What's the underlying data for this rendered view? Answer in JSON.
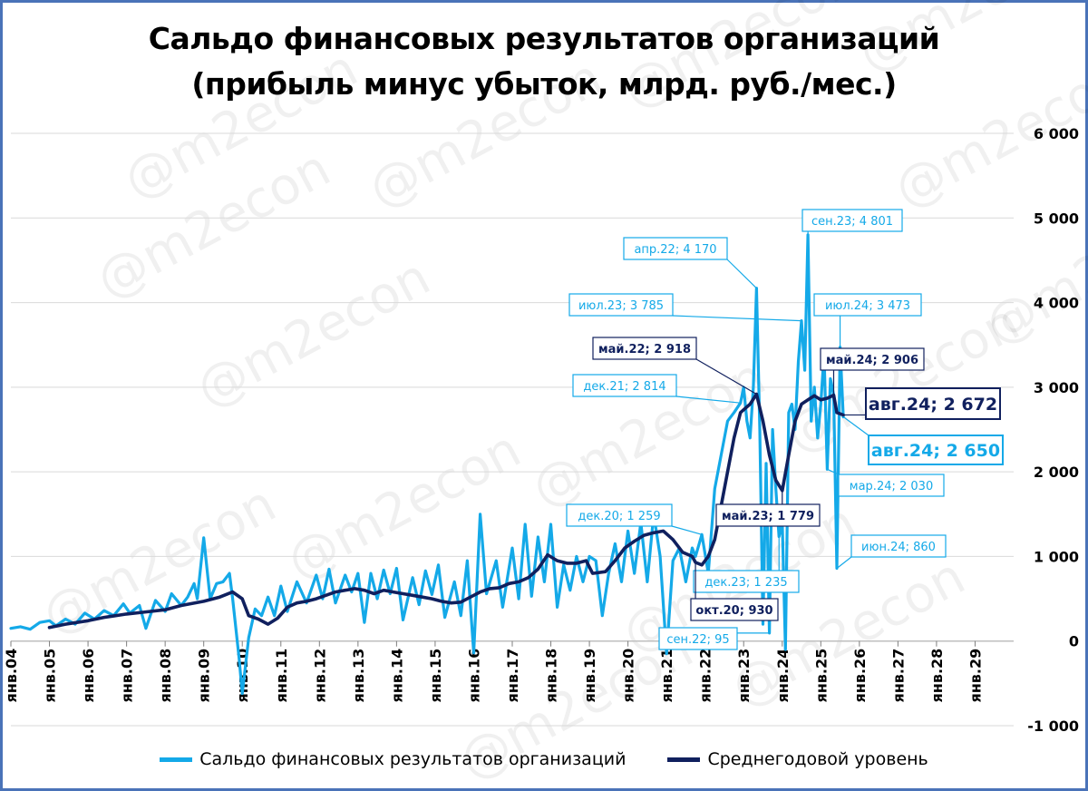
{
  "title": {
    "line1": "Сальдо финансовых результатов организаций",
    "line2": "(прибыль минус убыток, млрд. руб./мес.)"
  },
  "watermark": "@m2econ",
  "colors": {
    "series_main": "#14a9e8",
    "series_avg": "#10205e",
    "grid": "#d9d9d9",
    "frame": "#4a73b8"
  },
  "chart_data": {
    "type": "line",
    "y_axis": {
      "min": -1000,
      "max": 6000,
      "step": 1000,
      "position": "right"
    },
    "yticks": [
      "-1 000",
      "0",
      "1 000",
      "2 000",
      "3 000",
      "4 000",
      "5 000",
      "6 000"
    ],
    "x_axis": {
      "start_year": 2004,
      "end_year": 2030,
      "label_rotation": "vertical"
    },
    "xticks": [
      "янв.04",
      "янв.05",
      "янв.06",
      "янв.07",
      "янв.08",
      "янв.09",
      "янв.10",
      "янв.11",
      "янв.12",
      "янв.13",
      "янв.14",
      "янв.15",
      "янв.16",
      "янв.17",
      "янв.18",
      "янв.19",
      "янв.20",
      "янв.21",
      "янв.22",
      "янв.23",
      "янв.24",
      "янв.25",
      "янв.26",
      "янв.27",
      "янв.28",
      "янв.29"
    ],
    "grid": true,
    "legend_position": "bottom",
    "series": [
      {
        "name": "Сальдо финансовых результатов организаций",
        "color": "#14a9e8",
        "points": [
          [
            "2004-01",
            150
          ],
          [
            "2004-04",
            170
          ],
          [
            "2004-07",
            140
          ],
          [
            "2004-10",
            220
          ],
          [
            "2005-01",
            240
          ],
          [
            "2005-03",
            180
          ],
          [
            "2005-06",
            260
          ],
          [
            "2005-09",
            200
          ],
          [
            "2005-12",
            330
          ],
          [
            "2006-03",
            260
          ],
          [
            "2006-06",
            360
          ],
          [
            "2006-09",
            300
          ],
          [
            "2006-12",
            440
          ],
          [
            "2007-02",
            330
          ],
          [
            "2007-05",
            420
          ],
          [
            "2007-07",
            150
          ],
          [
            "2007-10",
            480
          ],
          [
            "2008-01",
            350
          ],
          [
            "2008-03",
            560
          ],
          [
            "2008-06",
            420
          ],
          [
            "2008-08",
            520
          ],
          [
            "2008-10",
            680
          ],
          [
            "2008-11",
            500
          ],
          [
            "2009-01",
            1220
          ],
          [
            "2009-03",
            500
          ],
          [
            "2009-05",
            680
          ],
          [
            "2009-07",
            700
          ],
          [
            "2009-09",
            800
          ],
          [
            "2009-10",
            500
          ],
          [
            "2009-12",
            -200
          ],
          [
            "2010-01",
            -620
          ],
          [
            "2010-03",
            40
          ],
          [
            "2010-05",
            380
          ],
          [
            "2010-07",
            300
          ],
          [
            "2010-09",
            520
          ],
          [
            "2010-11",
            300
          ],
          [
            "2011-01",
            650
          ],
          [
            "2011-03",
            350
          ],
          [
            "2011-06",
            700
          ],
          [
            "2011-09",
            450
          ],
          [
            "2011-12",
            780
          ],
          [
            "2012-02",
            500
          ],
          [
            "2012-04",
            850
          ],
          [
            "2012-06",
            450
          ],
          [
            "2012-09",
            780
          ],
          [
            "2012-11",
            580
          ],
          [
            "2013-01",
            800
          ],
          [
            "2013-03",
            220
          ],
          [
            "2013-05",
            800
          ],
          [
            "2013-07",
            500
          ],
          [
            "2013-09",
            840
          ],
          [
            "2013-11",
            560
          ],
          [
            "2014-01",
            860
          ],
          [
            "2014-03",
            250
          ],
          [
            "2014-06",
            750
          ],
          [
            "2014-08",
            430
          ],
          [
            "2014-10",
            830
          ],
          [
            "2014-12",
            550
          ],
          [
            "2015-02",
            900
          ],
          [
            "2015-04",
            280
          ],
          [
            "2015-07",
            700
          ],
          [
            "2015-09",
            300
          ],
          [
            "2015-11",
            950
          ],
          [
            "2016-01",
            -140
          ],
          [
            "2016-03",
            1500
          ],
          [
            "2016-05",
            560
          ],
          [
            "2016-08",
            950
          ],
          [
            "2016-10",
            400
          ],
          [
            "2017-01",
            1100
          ],
          [
            "2017-03",
            500
          ],
          [
            "2017-05",
            1380
          ],
          [
            "2017-07",
            530
          ],
          [
            "2017-09",
            1230
          ],
          [
            "2017-11",
            700
          ],
          [
            "2018-01",
            1380
          ],
          [
            "2018-03",
            400
          ],
          [
            "2018-05",
            900
          ],
          [
            "2018-07",
            600
          ],
          [
            "2018-09",
            1000
          ],
          [
            "2018-11",
            700
          ],
          [
            "2019-01",
            1000
          ],
          [
            "2019-03",
            950
          ],
          [
            "2019-05",
            300
          ],
          [
            "2019-07",
            800
          ],
          [
            "2019-09",
            1150
          ],
          [
            "2019-11",
            700
          ],
          [
            "2020-01",
            1300
          ],
          [
            "2020-03",
            800
          ],
          [
            "2020-05",
            1400
          ],
          [
            "2020-07",
            700
          ],
          [
            "2020-09",
            1500
          ],
          [
            "2020-11",
            1000
          ],
          [
            "2021-01",
            -150
          ],
          [
            "2021-03",
            950
          ],
          [
            "2021-05",
            1100
          ],
          [
            "2021-07",
            700
          ],
          [
            "2021-09",
            1100
          ],
          [
            "2021-10",
            1000
          ],
          [
            "2021-12",
            1259
          ],
          [
            "2022-02",
            800
          ],
          [
            "2022-04",
            1800
          ],
          [
            "2022-06",
            2200
          ],
          [
            "2022-08",
            2600
          ],
          [
            "2022-10",
            2700
          ],
          [
            "2022-12",
            2814
          ],
          [
            "2023-01",
            3000
          ],
          [
            "2023-02",
            2600
          ],
          [
            "2023-03",
            2400
          ],
          [
            "2023-04",
            3000
          ],
          [
            "2023-05",
            4170
          ],
          [
            "2023-06",
            2500
          ],
          [
            "2023-07",
            200
          ],
          [
            "2023-08",
            2100
          ],
          [
            "2023-09",
            95
          ],
          [
            "2023-10",
            2500
          ],
          [
            "2023-11",
            1800
          ],
          [
            "2023-12",
            1235
          ],
          [
            "2024-01",
            1400
          ],
          [
            "2024-02",
            -100
          ],
          [
            "2024-03",
            2700
          ],
          [
            "2024-04",
            2800
          ],
          [
            "2024-05",
            2500
          ],
          [
            "2024-06",
            3300
          ],
          [
            "2024-07",
            3785
          ],
          [
            "2024-08",
            3200
          ],
          [
            "2024-09",
            4801
          ],
          [
            "2024-10",
            2600
          ],
          [
            "2024-11",
            3000
          ],
          [
            "2024-12",
            2400
          ],
          [
            "2025-01",
            2800
          ],
          [
            "2025-02",
            3400
          ],
          [
            "2025-03",
            2030
          ],
          [
            "2025-04",
            3100
          ],
          [
            "2025-05",
            2906
          ],
          [
            "2025-06",
            860
          ],
          [
            "2025-07",
            3473
          ],
          [
            "2025-08",
            2650
          ]
        ]
      },
      {
        "name": "Среднегодовой уровень",
        "color": "#10205e",
        "points": [
          [
            "2005-01",
            160
          ],
          [
            "2005-06",
            200
          ],
          [
            "2006-01",
            240
          ],
          [
            "2006-06",
            280
          ],
          [
            "2007-01",
            320
          ],
          [
            "2007-06",
            340
          ],
          [
            "2008-01",
            370
          ],
          [
            "2008-06",
            420
          ],
          [
            "2009-01",
            470
          ],
          [
            "2009-06",
            520
          ],
          [
            "2009-10",
            580
          ],
          [
            "2010-01",
            500
          ],
          [
            "2010-03",
            300
          ],
          [
            "2010-06",
            260
          ],
          [
            "2010-09",
            200
          ],
          [
            "2010-12",
            270
          ],
          [
            "2011-03",
            400
          ],
          [
            "2011-06",
            450
          ],
          [
            "2011-09",
            470
          ],
          [
            "2011-12",
            500
          ],
          [
            "2012-03",
            540
          ],
          [
            "2012-06",
            580
          ],
          [
            "2012-09",
            600
          ],
          [
            "2012-12",
            620
          ],
          [
            "2013-03",
            600
          ],
          [
            "2013-06",
            560
          ],
          [
            "2013-09",
            600
          ],
          [
            "2013-12",
            580
          ],
          [
            "2014-03",
            560
          ],
          [
            "2014-06",
            540
          ],
          [
            "2014-09",
            520
          ],
          [
            "2014-12",
            500
          ],
          [
            "2015-03",
            470
          ],
          [
            "2015-06",
            450
          ],
          [
            "2015-09",
            460
          ],
          [
            "2015-12",
            520
          ],
          [
            "2016-03",
            580
          ],
          [
            "2016-06",
            620
          ],
          [
            "2016-09",
            630
          ],
          [
            "2016-12",
            680
          ],
          [
            "2017-03",
            700
          ],
          [
            "2017-06",
            750
          ],
          [
            "2017-09",
            850
          ],
          [
            "2017-12",
            1020
          ],
          [
            "2018-03",
            950
          ],
          [
            "2018-06",
            920
          ],
          [
            "2018-09",
            920
          ],
          [
            "2018-12",
            950
          ],
          [
            "2019-02",
            800
          ],
          [
            "2019-06",
            820
          ],
          [
            "2019-09",
            950
          ],
          [
            "2019-12",
            1100
          ],
          [
            "2020-03",
            1180
          ],
          [
            "2020-06",
            1250
          ],
          [
            "2020-09",
            1280
          ],
          [
            "2020-12",
            1300
          ],
          [
            "2021-03",
            1200
          ],
          [
            "2021-06",
            1050
          ],
          [
            "2021-09",
            1000
          ],
          [
            "2021-10",
            930
          ],
          [
            "2021-12",
            900
          ],
          [
            "2022-02",
            1000
          ],
          [
            "2022-04",
            1200
          ],
          [
            "2022-06",
            1600
          ],
          [
            "2022-08",
            2000
          ],
          [
            "2022-10",
            2400
          ],
          [
            "2022-12",
            2700
          ],
          [
            "2023-03",
            2800
          ],
          [
            "2023-05",
            2918
          ],
          [
            "2023-07",
            2600
          ],
          [
            "2023-09",
            2200
          ],
          [
            "2023-11",
            1900
          ],
          [
            "2024-01",
            1779
          ],
          [
            "2024-03",
            2200
          ],
          [
            "2024-05",
            2600
          ],
          [
            "2024-07",
            2800
          ],
          [
            "2024-09",
            2850
          ],
          [
            "2024-11",
            2900
          ],
          [
            "2025-01",
            2850
          ],
          [
            "2025-03",
            2870
          ],
          [
            "2025-05",
            2906
          ],
          [
            "2025-06",
            2700
          ],
          [
            "2025-08",
            2672
          ]
        ]
      }
    ],
    "annotations": [
      {
        "text": "апр.22; 4 170",
        "series": 0,
        "at": "2023-05",
        "value": 4170,
        "style": "light"
      },
      {
        "text": "сен.23; 4 801",
        "series": 0,
        "at": "2024-09",
        "value": 4801,
        "style": "light"
      },
      {
        "text": "июл.23; 3 785",
        "series": 0,
        "at": "2024-07",
        "value": 3785,
        "style": "light"
      },
      {
        "text": "июл.24; 3 473",
        "series": 0,
        "at": "2025-07",
        "value": 3473,
        "style": "light"
      },
      {
        "text": "май.22; 2 918",
        "series": 1,
        "at": "2023-05",
        "value": 2918,
        "style": "dark"
      },
      {
        "text": "май.24; 2 906",
        "series": 1,
        "at": "2025-05",
        "value": 2906,
        "style": "dark"
      },
      {
        "text": "дек.21; 2 814",
        "series": 0,
        "at": "2022-12",
        "value": 2814,
        "style": "light"
      },
      {
        "text": "авг.24; 2 672",
        "series": 1,
        "at": "2025-08",
        "value": 2672,
        "style": "dark-big"
      },
      {
        "text": "авг.24; 2 650",
        "series": 0,
        "at": "2025-08",
        "value": 2650,
        "style": "light-big"
      },
      {
        "text": "мар.24; 2 030",
        "series": 0,
        "at": "2025-03",
        "value": 2030,
        "style": "light"
      },
      {
        "text": "май.23; 1 779",
        "series": 1,
        "at": "2024-01",
        "value": 1779,
        "style": "dark"
      },
      {
        "text": "дек.20; 1 259",
        "series": 0,
        "at": "2021-12",
        "value": 1259,
        "style": "light"
      },
      {
        "text": "июн.24; 860",
        "series": 0,
        "at": "2025-06",
        "value": 860,
        "style": "light"
      },
      {
        "text": "дек.23; 1 235",
        "series": 0,
        "at": "2023-12",
        "value": 1235,
        "style": "light"
      },
      {
        "text": "окт.20; 930",
        "series": 1,
        "at": "2021-10",
        "value": 930,
        "style": "dark"
      },
      {
        "text": "сен.22; 95",
        "series": 0,
        "at": "2023-09",
        "value": 95,
        "style": "light"
      }
    ]
  },
  "legend": {
    "items": [
      {
        "label": "Сальдо финансовых результатов организаций",
        "color": "#14a9e8"
      },
      {
        "label": "Среднегодовой уровень",
        "color": "#10205e"
      }
    ]
  }
}
